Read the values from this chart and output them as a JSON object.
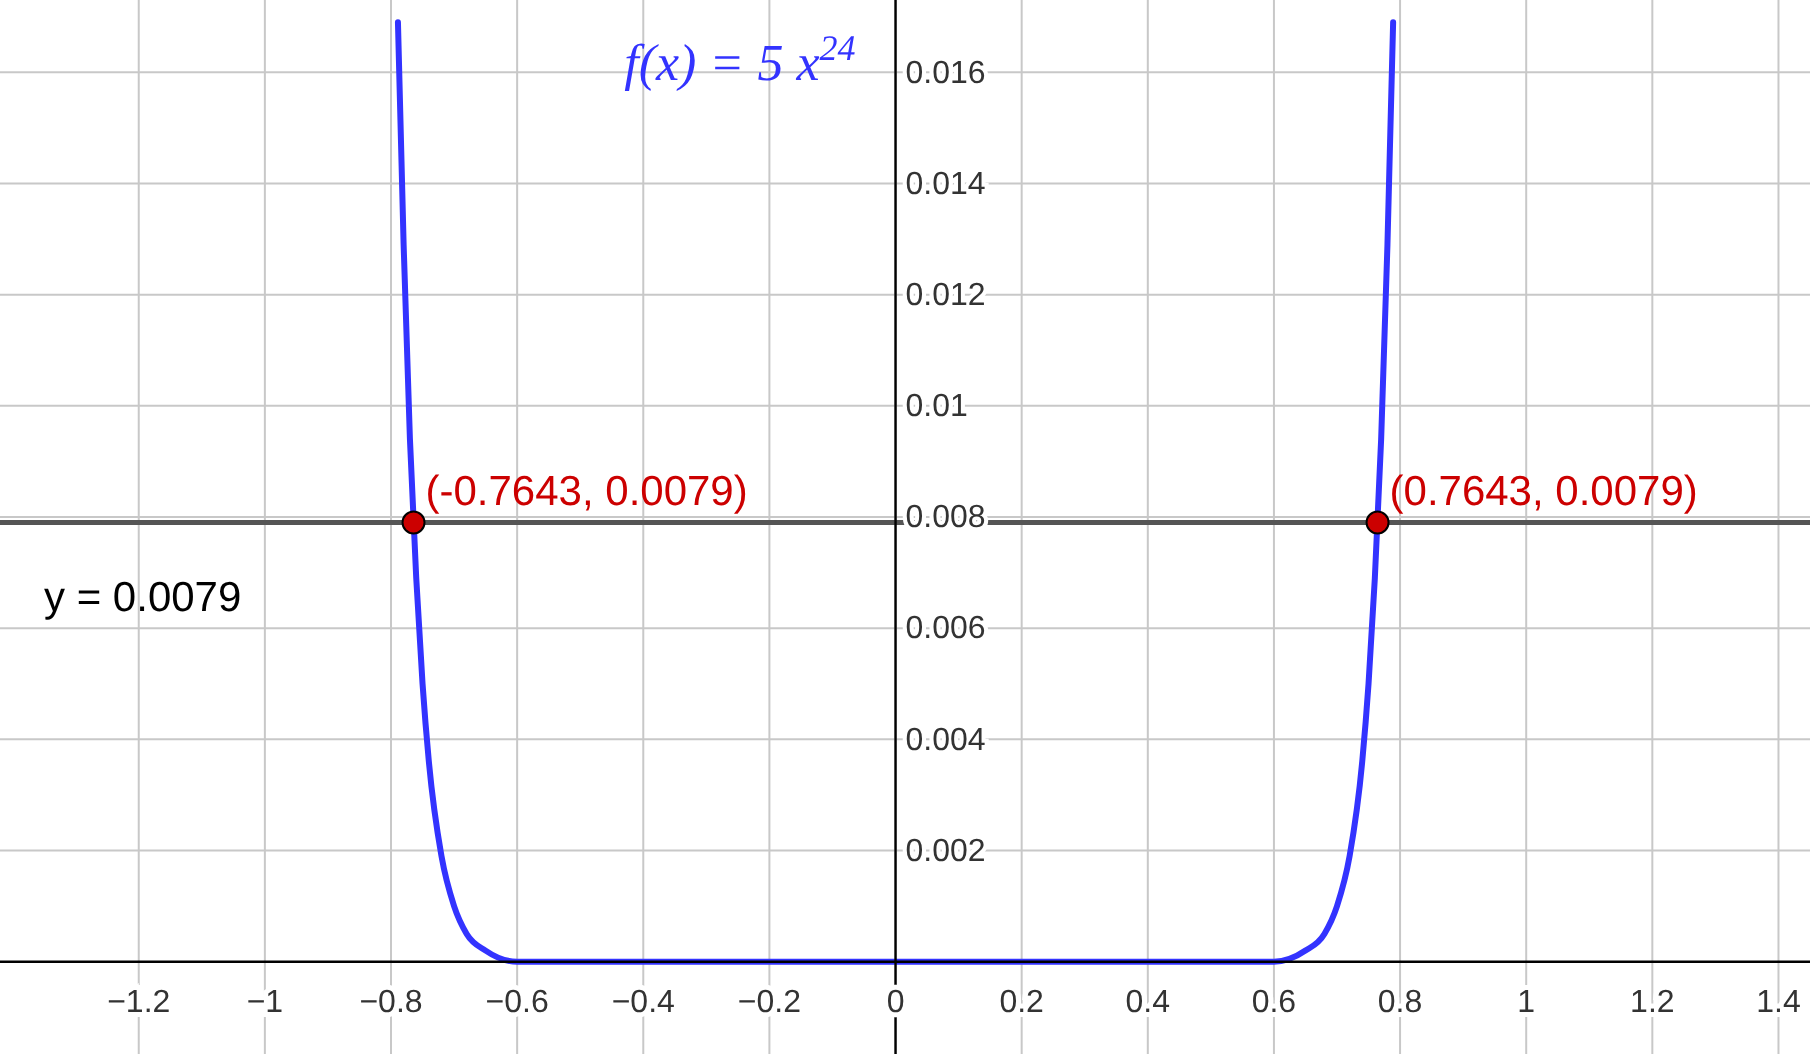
{
  "chart_data": {
    "type": "line",
    "title": "f(x) = 5 x$^{24}$",
    "xlim": [
      -1.42,
      1.45
    ],
    "ylim": [
      -0.00166,
      0.0173
    ],
    "xticks": [
      {
        "value": -1.2,
        "label": "−1.2"
      },
      {
        "value": -1,
        "label": "−1"
      },
      {
        "value": -0.8,
        "label": "−0.8"
      },
      {
        "value": -0.6,
        "label": "−0.6"
      },
      {
        "value": -0.4,
        "label": "−0.4"
      },
      {
        "value": -0.2,
        "label": "−0.2"
      },
      0,
      0.2,
      0.4,
      0.6,
      0.8,
      1,
      1.2,
      1.4
    ],
    "yticks": [
      0.002,
      0.004,
      0.006,
      0.008,
      0.01,
      0.012,
      0.014,
      0.016
    ],
    "grid": true,
    "series": [
      {
        "color": "#3333ff",
        "x": [
          -0.789,
          -0.78,
          -0.77,
          -0.76,
          -0.75,
          -0.74,
          -0.72,
          -0.7,
          -0.68,
          -0.65,
          -0.6,
          -0.5,
          0,
          0.5,
          0.6,
          0.65,
          0.68,
          0.7,
          0.72,
          0.74,
          0.75,
          0.76,
          0.77,
          0.78,
          0.789
        ],
        "values": [
          0.0169,
          0.0129,
          0.0094,
          0.0069,
          0.005,
          0.0036,
          0.0019,
          0.001,
          0.0005,
          0.0002,
          0,
          0,
          0,
          0,
          0,
          0.0002,
          0.0005,
          0.001,
          0.0019,
          0.0036,
          0.005,
          0.0069,
          0.0094,
          0.0129,
          0.0169
        ]
      },
      {
        "type": "scatter",
        "color": "#cc0000",
        "x": [
          -0.7643,
          0.7643
        ],
        "values": [
          0.0079,
          0.0079
        ],
        "value_labels": [
          "(-0.7643, 0.0079)",
          "(0.7643, 0.0079)"
        ]
      }
    ],
    "ref_lines": [
      {
        "axis": "y",
        "value": 0.0079,
        "label": "y = 0.0079",
        "color": "#555555"
      }
    ]
  }
}
